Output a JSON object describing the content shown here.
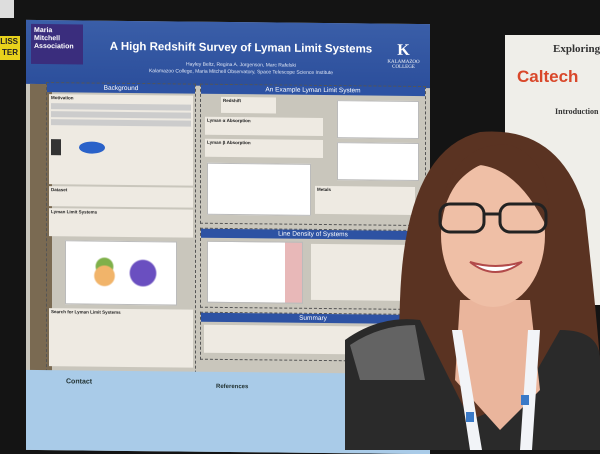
{
  "sign": {
    "text": "LISS TER"
  },
  "poster": {
    "logo_text": "Maria Mitchell Association",
    "title": "A High Redshift Survey of Lyman Limit Systems",
    "authors": "Hayley Beltz, Regina A. Jorgenson, Marc Rafelski",
    "affiliations": "Kalamazoo College, Maria Mitchell Observatory, Space Telescope Science Institute",
    "college_logo": "KALAMAZOO COLLEGE",
    "sections": {
      "background": "Background",
      "motivation": "Motivation",
      "dataset": "Dataset",
      "lls": "Lyman Limit Systems",
      "search": "Search for Lyman Limit Systems",
      "example": "An Example Lyman Limit System",
      "redshift": "Redshift",
      "lya": "Lyman α Absorption",
      "lyb": "Lyman β Absorption",
      "metals": "Metals",
      "line_density": "Line Density of Systems",
      "summary": "Summary",
      "contact": "Contact",
      "references": "References"
    }
  },
  "caltech_poster": {
    "logo": "Caltech",
    "title": "Exploring th",
    "intro": "Introduction"
  },
  "colors": {
    "poster_blue": "#2d52a3",
    "contact_blue": "#a9cbe8",
    "caltech_orange": "#d9472a"
  }
}
